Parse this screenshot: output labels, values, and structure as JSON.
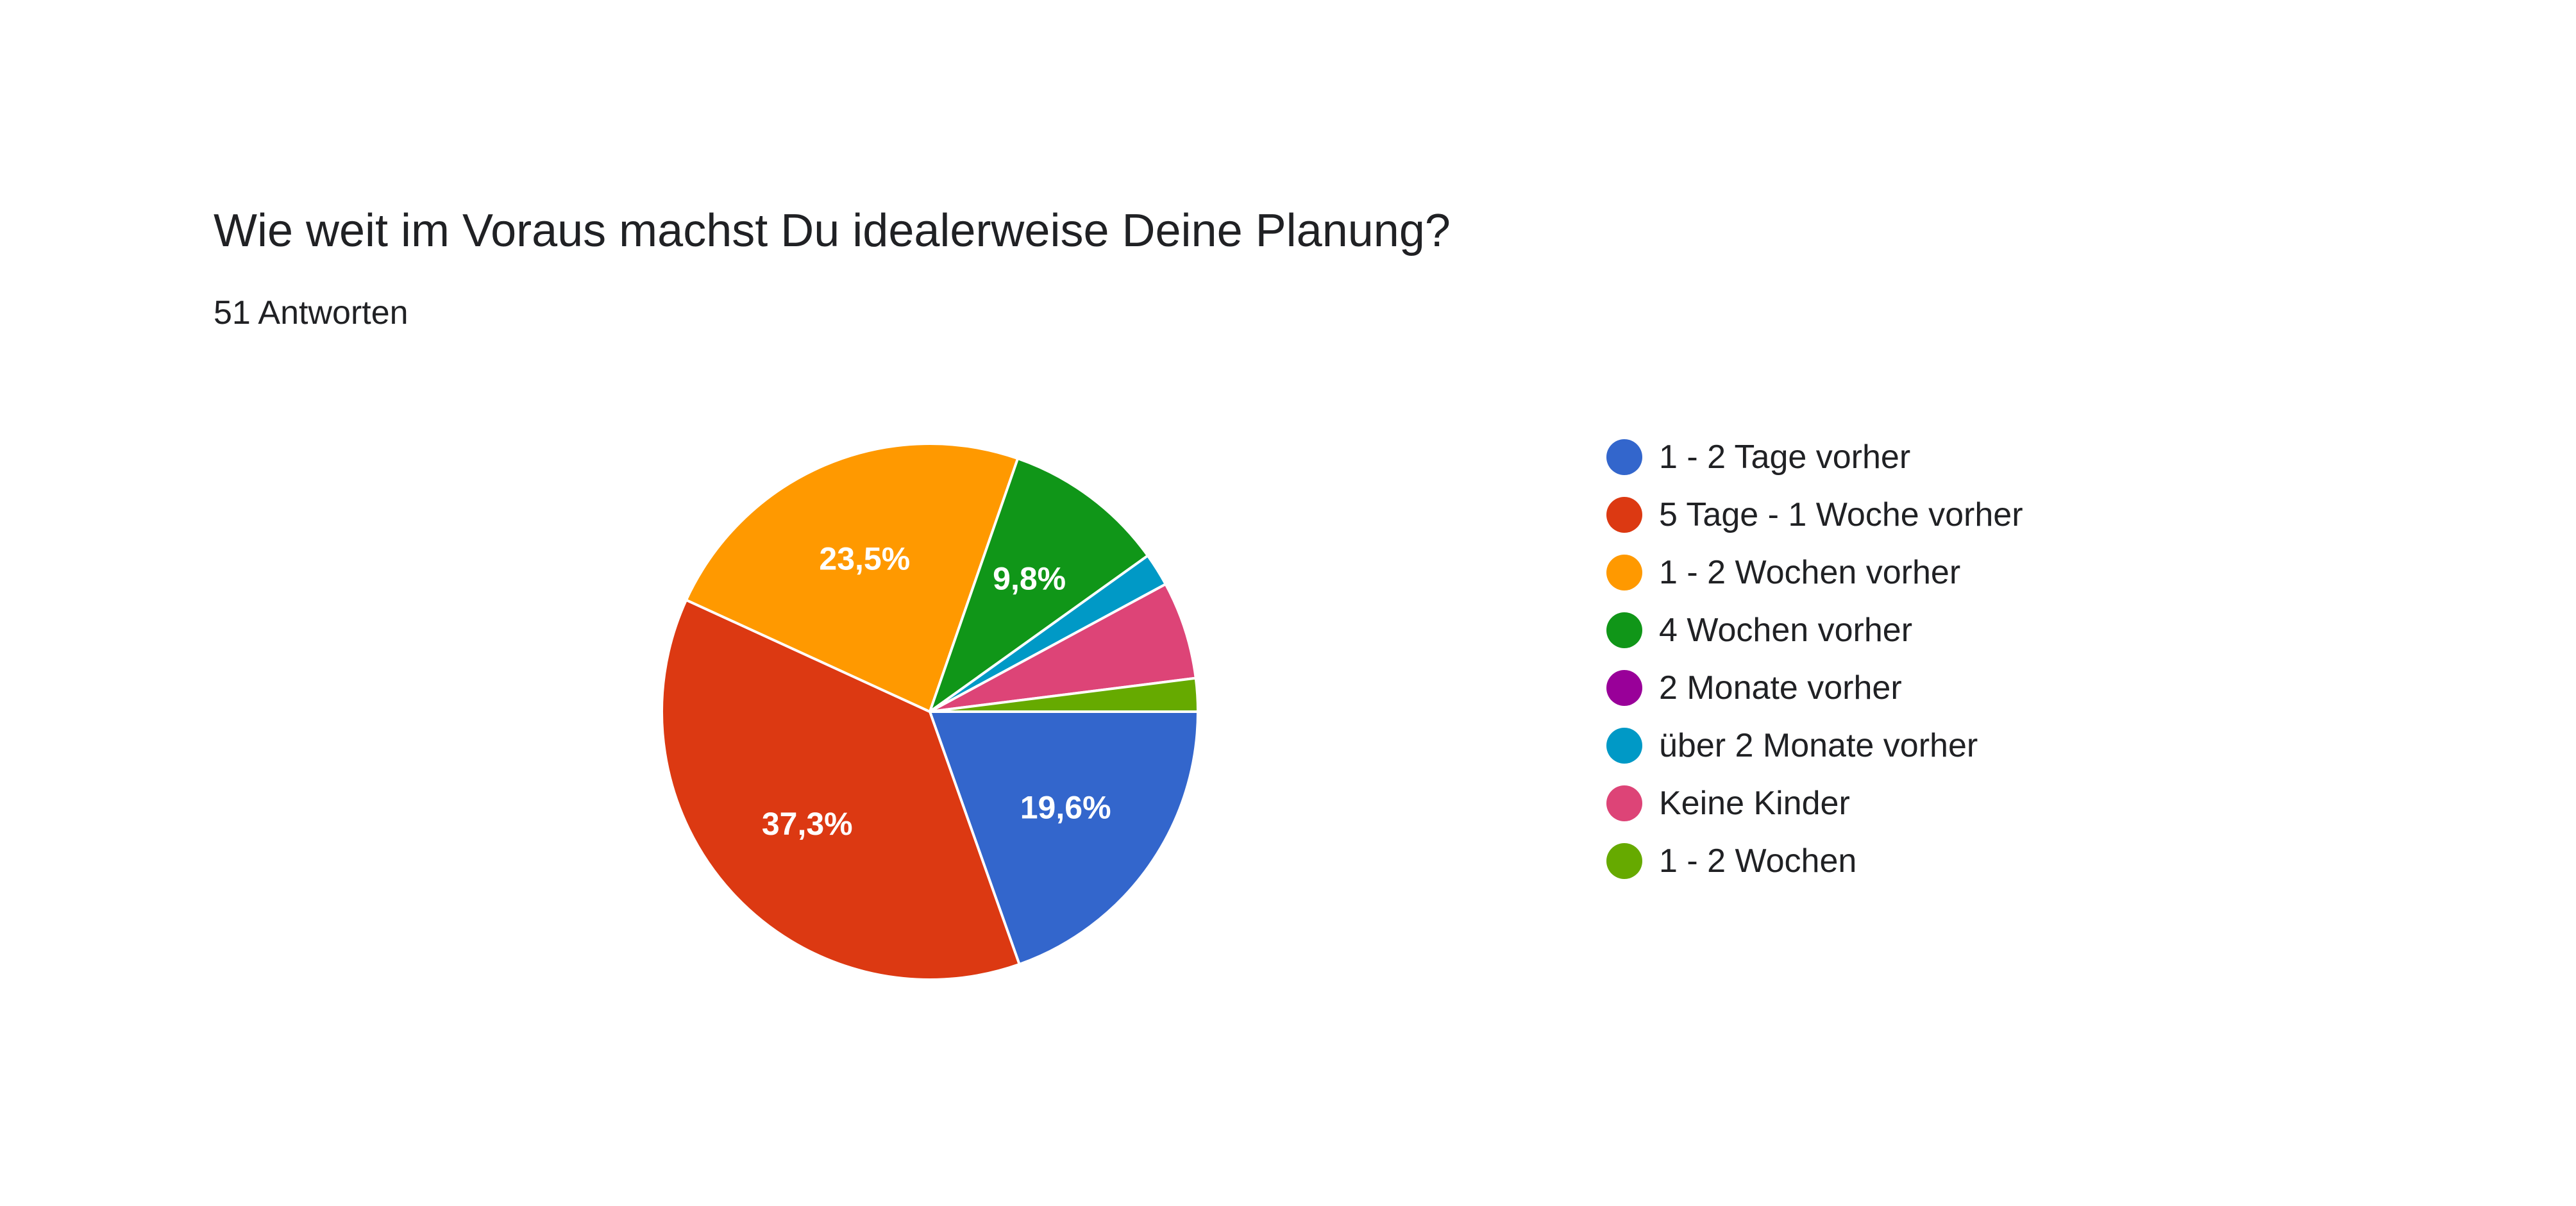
{
  "header": {
    "title": "Wie weit im Voraus machst Du idealerweise Deine Planung?",
    "subtitle": "51 Antworten"
  },
  "chart_data": {
    "type": "pie",
    "title": "Wie weit im Voraus machst Du idealerweise Deine Planung?",
    "total_responses": 51,
    "start_angle_deg": 90,
    "direction": "clockwise",
    "legend_position": "right",
    "slices": [
      {
        "label": "1 - 2 Tage vorher",
        "value": 19.6,
        "display": "19,6%",
        "color": "#3366cc"
      },
      {
        "label": "5 Tage - 1 Woche vorher",
        "value": 37.3,
        "display": "37,3%",
        "color": "#dc3912"
      },
      {
        "label": "1 - 2 Wochen vorher",
        "value": 23.5,
        "display": "23,5%",
        "color": "#ff9900"
      },
      {
        "label": "4 Wochen vorher",
        "value": 9.8,
        "display": "9,8%",
        "color": "#109618"
      },
      {
        "label": "2 Monate vorher",
        "value": 0,
        "display": "",
        "color": "#990099"
      },
      {
        "label": "über 2 Monate vorher",
        "value": 2.0,
        "display": "",
        "color": "#0099c6"
      },
      {
        "label": "Keine Kinder",
        "value": 5.9,
        "display": "",
        "color": "#dd4477"
      },
      {
        "label": "1 - 2 Wochen",
        "value": 2.0,
        "display": "",
        "color": "#66aa00"
      }
    ]
  }
}
